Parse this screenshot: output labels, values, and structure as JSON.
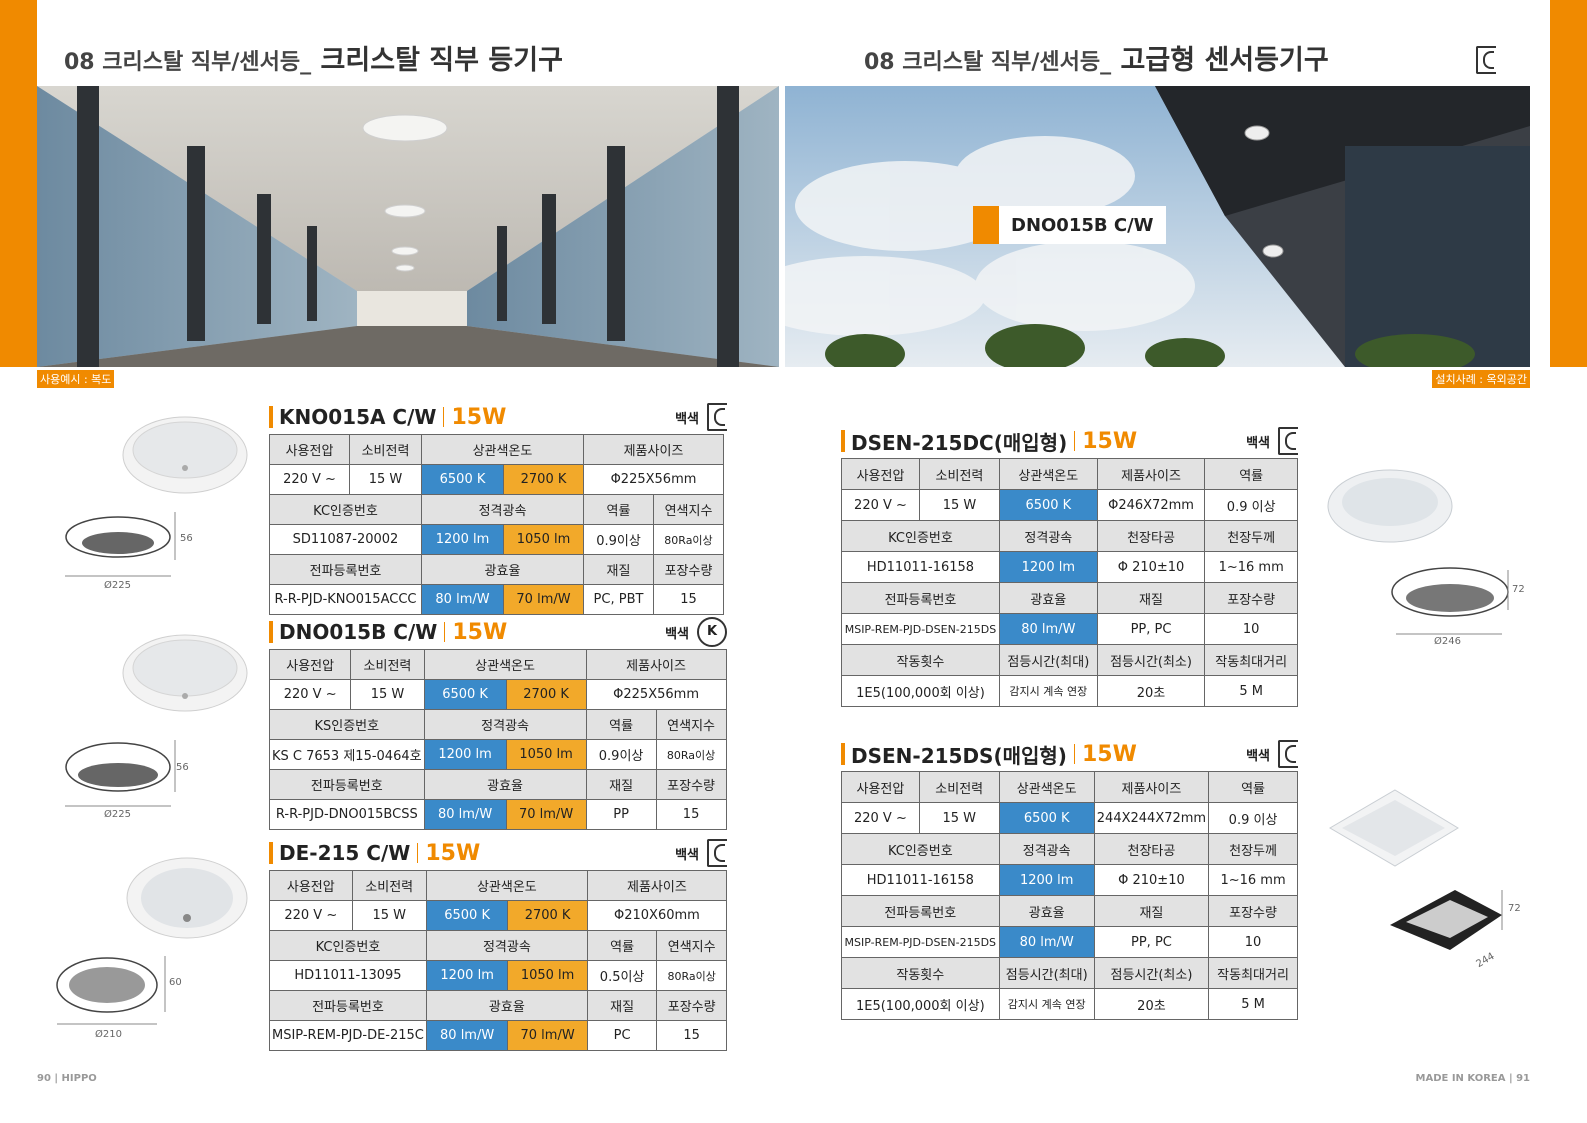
{
  "left": {
    "title_prefix": "08 크리스탈 직부/센서등_",
    "title_main": "크리스탈 직부 등기구",
    "caption": "사용예시 : 복도",
    "footer": "90 | HIPPO"
  },
  "right": {
    "title_prefix": "08 크리스탈 직부/센서등_",
    "title_main": "고급형 센서등기구",
    "caption": "설치사례 : 옥외공간",
    "photo_label": "DNO015B C/W",
    "footer": "MADE IN KOREA | 91"
  },
  "certs": {
    "kc": "KC",
    "ks": "K"
  },
  "products": [
    {
      "model": "KNO015A C/W",
      "watt": "15W",
      "color": "백색",
      "cert": "kc",
      "rows": [
        [
          "사용전압",
          "소비전력",
          "상관색온도",
          "제품사이즈"
        ],
        [
          "220 V ~",
          "15 W",
          "6500 K",
          "2700 K",
          "Φ225X56mm"
        ],
        [
          "KC인증번호",
          "정격광속",
          "역률",
          "연색지수"
        ],
        [
          "SD11087-20002",
          "1200 lm",
          "1050 lm",
          "0.9이상",
          "80Ra이상"
        ],
        [
          "전파등록번호",
          "광효율",
          "재질",
          "포장수량"
        ],
        [
          "R-R-PJD-KNO015ACCC",
          "80 lm/W",
          "70 lm/W",
          "PC, PBT",
          "15"
        ]
      ],
      "dims": {
        "h": "56",
        "d": "Ø225"
      }
    },
    {
      "model": "DNO015B C/W",
      "watt": "15W",
      "color": "백색",
      "cert": "ks",
      "rows": [
        [
          "사용전압",
          "소비전력",
          "상관색온도",
          "제품사이즈"
        ],
        [
          "220 V ~",
          "15 W",
          "6500 K",
          "2700 K",
          "Φ225X56mm"
        ],
        [
          "KS인증번호",
          "정격광속",
          "역률",
          "연색지수"
        ],
        [
          "KS C 7653 제15-0464호",
          "1200 lm",
          "1050 lm",
          "0.9이상",
          "80Ra이상"
        ],
        [
          "전파등록번호",
          "광효율",
          "재질",
          "포장수량"
        ],
        [
          "R-R-PJD-DNO015BCSS",
          "80 lm/W",
          "70 lm/W",
          "PP",
          "15"
        ]
      ],
      "dims": {
        "h": "56",
        "d": "Ø225"
      }
    },
    {
      "model": "DE-215 C/W",
      "watt": "15W",
      "color": "백색",
      "cert": "kc",
      "rows": [
        [
          "사용전압",
          "소비전력",
          "상관색온도",
          "제품사이즈"
        ],
        [
          "220 V ~",
          "15 W",
          "6500 K",
          "2700 K",
          "Φ210X60mm"
        ],
        [
          "KC인증번호",
          "정격광속",
          "역률",
          "연색지수"
        ],
        [
          "HD11011-13095",
          "1200 lm",
          "1050 lm",
          "0.5이상",
          "80Ra이상"
        ],
        [
          "전파등록번호",
          "광효율",
          "재질",
          "포장수량"
        ],
        [
          "MSIP-REM-PJD-DE-215C",
          "80 lm/W",
          "70 lm/W",
          "PC",
          "15"
        ]
      ],
      "dims": {
        "h": "60",
        "d": "Ø210"
      }
    },
    {
      "model": "DSEN-215DC(매입형)",
      "watt": "15W",
      "color": "백색",
      "cert": "kc",
      "rows": [
        [
          "사용전압",
          "소비전력",
          "상관색온도",
          "제품사이즈",
          "역률"
        ],
        [
          "220 V ~",
          "15 W",
          "6500 K",
          "Φ246X72mm",
          "0.9 이상"
        ],
        [
          "KC인증번호",
          "정격광속",
          "천장타공",
          "천장두께"
        ],
        [
          "HD11011-16158",
          "1200 lm",
          "Φ 210±10",
          "1~16 mm"
        ],
        [
          "전파등록번호",
          "광효율",
          "재질",
          "포장수량"
        ],
        [
          "MSIP-REM-PJD-DSEN-215DS",
          "80 lm/W",
          "PP, PC",
          "10"
        ],
        [
          "작동횟수",
          "점등시간(최대)",
          "점등시간(최소)",
          "작동최대거리"
        ],
        [
          "1E5(100,000회 이상)",
          "감지시 계속 연장",
          "20초",
          "5 M"
        ]
      ],
      "dims": {
        "h": "72",
        "d": "Ø246"
      }
    },
    {
      "model": "DSEN-215DS(매입형)",
      "watt": "15W",
      "color": "백색",
      "cert": "kc",
      "rows": [
        [
          "사용전압",
          "소비전력",
          "상관색온도",
          "제품사이즈",
          "역률"
        ],
        [
          "220 V ~",
          "15 W",
          "6500 K",
          "244X244X72mm",
          "0.9 이상"
        ],
        [
          "KC인증번호",
          "정격광속",
          "천장타공",
          "천장두께"
        ],
        [
          "HD11011-16158",
          "1200 lm",
          "Φ 210±10",
          "1~16 mm"
        ],
        [
          "전파등록번호",
          "광효율",
          "재질",
          "포장수량"
        ],
        [
          "MSIP-REM-PJD-DSEN-215DS",
          "80 lm/W",
          "PP, PC",
          "10"
        ],
        [
          "작동횟수",
          "점등시간(최대)",
          "점등시간(최소)",
          "작동최대거리"
        ],
        [
          "1E5(100,000회 이상)",
          "감지시 계속 연장",
          "20초",
          "5 M"
        ]
      ],
      "dims": {
        "h": "72",
        "d": "244"
      }
    }
  ]
}
